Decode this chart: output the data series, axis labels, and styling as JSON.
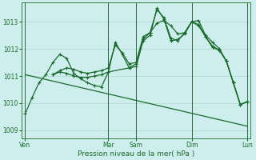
{
  "background_color": "#cdeeed",
  "grid_color": "#b0d8d0",
  "line_color": "#1a6b2a",
  "marker_color": "#1a6b2a",
  "xlabel": "Pression niveau de la mer( hPa )",
  "ylim": [
    1008.7,
    1013.7
  ],
  "yticks": [
    1009,
    1010,
    1011,
    1012,
    1013
  ],
  "ylabel_fontsize": 6,
  "xtick_labels": [
    "Ven",
    "",
    "Mar",
    "Sam",
    "",
    "Dim",
    "",
    "Lun"
  ],
  "xtick_positions": [
    0,
    8,
    12,
    16,
    20,
    24,
    28,
    32
  ],
  "total_points": 33,
  "series1_x": [
    0,
    1,
    2,
    3,
    4,
    5,
    6,
    7,
    8,
    9,
    10,
    11,
    12,
    13,
    14,
    15,
    16,
    17,
    18,
    19,
    20,
    21,
    22,
    23,
    24,
    25,
    26,
    27,
    28,
    29,
    30,
    31,
    32
  ],
  "series1": [
    1009.6,
    1010.2,
    1010.75,
    1011.05,
    1011.5,
    1011.8,
    1011.65,
    1011.1,
    1010.9,
    1010.75,
    1010.65,
    1010.6,
    1011.15,
    1012.25,
    1011.8,
    1011.3,
    1011.35,
    1012.3,
    1012.5,
    1013.5,
    1013.1,
    1012.3,
    1012.35,
    1012.55,
    1013.0,
    1013.05,
    1012.5,
    1012.25,
    1012.0,
    1011.55,
    1010.75,
    1009.95,
    1010.05
  ],
  "series2_x": [
    4,
    5,
    6,
    7,
    8,
    9,
    10,
    11,
    12,
    15,
    16,
    17,
    18,
    19,
    20,
    21,
    22,
    23,
    24,
    25,
    26,
    27,
    28,
    29,
    30,
    31,
    32
  ],
  "series2": [
    1011.05,
    1011.15,
    1011.1,
    1011.0,
    1010.95,
    1010.95,
    1011.0,
    1011.05,
    1011.15,
    1011.3,
    1011.45,
    1012.35,
    1012.6,
    1013.45,
    1013.15,
    1012.4,
    1012.3,
    1012.6,
    1013.0,
    1012.85,
    1012.45,
    1012.05,
    1011.95,
    1011.55,
    1010.75,
    1009.95,
    1010.05
  ],
  "series3_x": [
    0,
    32
  ],
  "series3_y": [
    1011.05,
    1009.15
  ],
  "series4_x": [
    4,
    5,
    6,
    7,
    8,
    9,
    10,
    11,
    12,
    13,
    14,
    15,
    16,
    17,
    18,
    19,
    20,
    21,
    22,
    23,
    24,
    25,
    26,
    27,
    28,
    29,
    30,
    31,
    32
  ],
  "series4": [
    1011.05,
    1011.2,
    1011.3,
    1011.25,
    1011.15,
    1011.1,
    1011.15,
    1011.2,
    1011.3,
    1012.15,
    1011.85,
    1011.45,
    1011.5,
    1012.45,
    1012.6,
    1012.95,
    1013.05,
    1012.85,
    1012.55,
    1012.6,
    1013.0,
    1012.9,
    1012.45,
    1012.1,
    1011.95,
    1011.55,
    1010.75,
    1009.95,
    1010.05
  ],
  "vline_color": "#336644",
  "vlines": [
    0,
    12,
    16,
    24,
    32
  ]
}
